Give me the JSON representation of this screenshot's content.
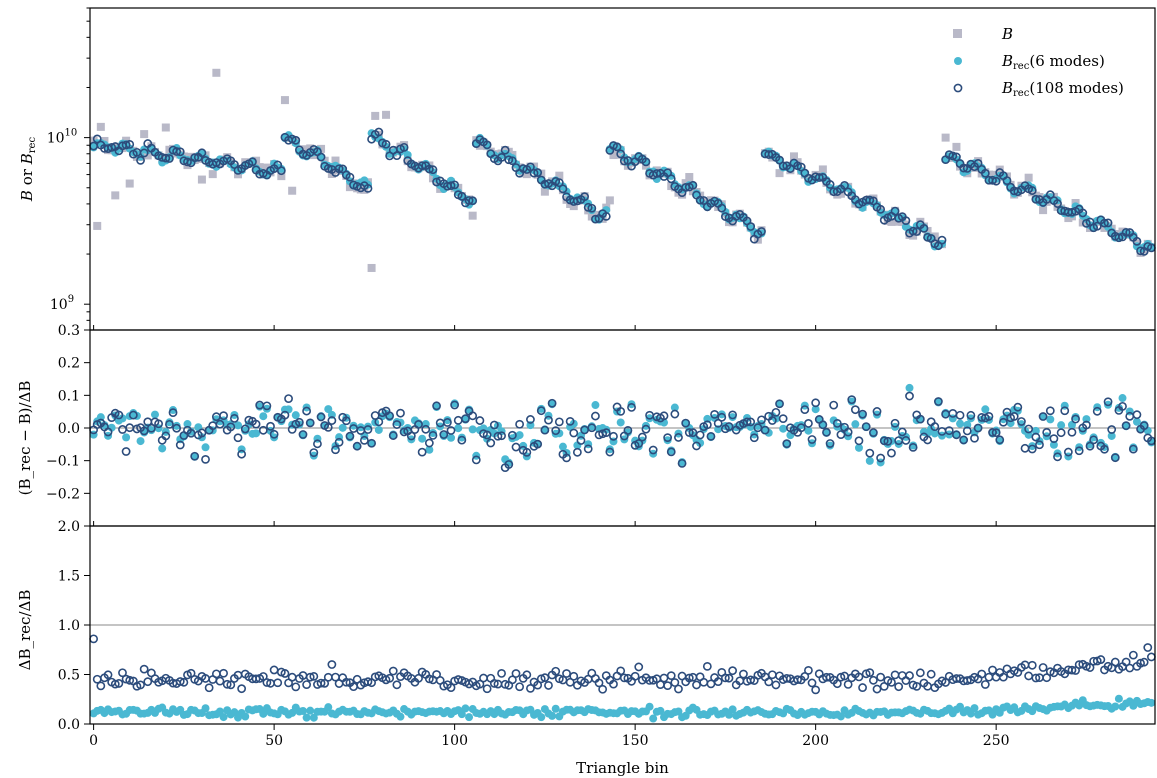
{
  "chart_data": {
    "type": "scatter",
    "colors": {
      "B": "#b9b9c8",
      "rec6": "#4ab8d2",
      "rec108": "#2c4c7c",
      "refline": "#888888"
    },
    "xlabel": "Triangle bin",
    "xlim": [
      -1,
      294
    ],
    "xticks": [
      0,
      50,
      100,
      150,
      200,
      250
    ],
    "xtick_labels": [
      "0",
      "50",
      "100",
      "150",
      "200",
      "250"
    ],
    "n_bins": 294,
    "panels": [
      {
        "id": "top",
        "ylabel_parts": [
          "B",
          " or ",
          "B",
          "rec"
        ],
        "yscale": "log",
        "ylim": [
          700000000,
          60000000000
        ],
        "ytick_labels": [
          {
            "base": "10",
            "exp": "10",
            "value": 10000000000
          },
          {
            "base": "10",
            "exp": "9",
            "value": 1000000000
          }
        ],
        "series_summary": "B measured vs reconstructed bispectrum across triangle bins; sawtooth blocks decreasing from ~1e10 to ~2.2e9",
        "block_starts": [
          0,
          53,
          77,
          106,
          143,
          186,
          236,
          293
        ],
        "block_start_values": [
          9000000000,
          9800000000,
          10000000000,
          9200000000,
          8600000000,
          7800000000,
          7500000000
        ],
        "block_end_values": [
          6200000000,
          4900000000,
          4100000000,
          3300000000,
          2650000000,
          2350000000,
          2200000000
        ],
        "B_outliers": [
          {
            "x": 1,
            "y": 2950000000
          },
          {
            "x": 2,
            "y": 11600000000
          },
          {
            "x": 6,
            "y": 4500000000
          },
          {
            "x": 10,
            "y": 5300000000
          },
          {
            "x": 34,
            "y": 24500000000
          },
          {
            "x": 30,
            "y": 5600000000
          },
          {
            "x": 53,
            "y": 16800000000
          },
          {
            "x": 55,
            "y": 4800000000
          },
          {
            "x": 77,
            "y": 1650000000
          },
          {
            "x": 78,
            "y": 13500000000
          },
          {
            "x": 81,
            "y": 13700000000
          },
          {
            "x": 105,
            "y": 3400000000
          },
          {
            "x": 143,
            "y": 4200000000
          },
          {
            "x": 234,
            "y": 2300000000
          },
          {
            "x": 236,
            "y": 10000000000
          },
          {
            "x": 239,
            "y": 8800000000
          },
          {
            "x": 20,
            "y": 11500000000
          },
          {
            "x": 14,
            "y": 10500000000
          }
        ]
      },
      {
        "id": "middle",
        "ylabel": "(B_rec − B)/ΔB",
        "ylim": [
          -0.3,
          0.3
        ],
        "yticks": [
          -0.2,
          -0.1,
          0.0,
          0.1,
          0.2,
          0.3
        ],
        "ytick_labels": [
          "−0.2",
          "−0.1",
          "0.0",
          "0.1",
          "0.2",
          "0.3"
        ],
        "reference_line": 0.0,
        "rec6_range": [
          -0.16,
          0.19
        ],
        "rec108_range": [
          -0.14,
          0.19
        ]
      },
      {
        "id": "bottom",
        "ylabel": "ΔB_rec/ΔB",
        "ylim": [
          0.0,
          2.0
        ],
        "yticks": [
          0.0,
          0.5,
          1.0,
          1.5,
          2.0
        ],
        "ytick_labels": [
          "0.0",
          "0.5",
          "1.0",
          "1.5",
          "2.0"
        ],
        "reference_line": 1.0,
        "rec6_level": 0.12,
        "rec108_level": 0.45
      }
    ],
    "legend": {
      "position": "top-right",
      "entries": [
        {
          "label": "B",
          "marker": "square"
        },
        {
          "label": "B",
          "sub": "rec",
          "suffix": "(6 modes)",
          "marker": "filled-circle"
        },
        {
          "label": "B",
          "sub": "rec",
          "suffix": "(108 modes)",
          "marker": "open-circle"
        }
      ]
    }
  }
}
